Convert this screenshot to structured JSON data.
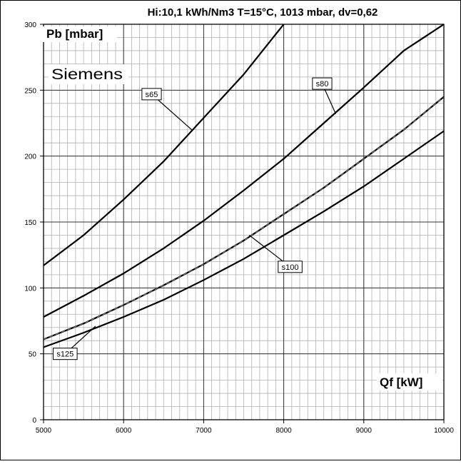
{
  "chart_data": {
    "type": "line",
    "title": "Hi:10,1 kWh/Nm3 T=15°C, 1013 mbar, dv=0,62",
    "xlabel": "Qf [kW]",
    "ylabel": "Pb [mbar]",
    "annotation": "Siemens",
    "xlim": [
      5000,
      10000
    ],
    "ylim": [
      0,
      300
    ],
    "xticks": [
      "5000",
      "6000",
      "7000",
      "8000",
      "9000",
      "10000"
    ],
    "yticks": [
      "0",
      "50",
      "100",
      "150",
      "200",
      "250",
      "300"
    ],
    "grid": true,
    "grid_minor_x": 100,
    "grid_minor_y": 10,
    "series": [
      {
        "name": "s65",
        "x": [
          5000,
          5500,
          6000,
          6500,
          7000,
          7500,
          8000
        ],
        "y": [
          117,
          140,
          167,
          196,
          229,
          262,
          300
        ],
        "label_at": [
          6350,
          247
        ],
        "leader_to": [
          6850,
          220
        ]
      },
      {
        "name": "s80",
        "x": [
          5000,
          5500,
          6000,
          6500,
          7000,
          7500,
          8000,
          8500,
          9000,
          9500,
          10000
        ],
        "y": [
          78,
          94,
          111,
          130,
          151,
          174,
          198,
          225,
          252,
          280,
          300
        ],
        "label_at": [
          8480,
          255
        ],
        "leader_to": [
          8650,
          232
        ]
      },
      {
        "name": "s100",
        "x": [
          5000,
          5500,
          6000,
          6500,
          7000,
          7500,
          8000,
          8500,
          9000,
          9500,
          10000
        ],
        "y": [
          61,
          73,
          87,
          102,
          118,
          136,
          156,
          176,
          198,
          220,
          245
        ],
        "label_at": [
          8080,
          116
        ],
        "leader_to": [
          7570,
          140
        ],
        "dashed_overlay": true
      },
      {
        "name": "s125",
        "x": [
          5000,
          5500,
          6000,
          6500,
          7000,
          7500,
          8000,
          8500,
          9000,
          9500,
          10000
        ],
        "y": [
          55,
          66,
          78,
          91,
          106,
          122,
          140,
          158,
          177,
          198,
          219
        ],
        "label_at": [
          5270,
          50
        ],
        "leader_to": [
          5650,
          71
        ]
      }
    ]
  }
}
